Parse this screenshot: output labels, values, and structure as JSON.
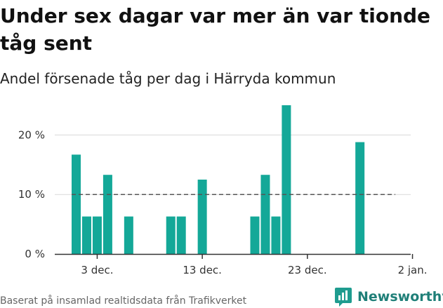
{
  "title": "Under sex dagar var mer än var tionde tåg sent",
  "subtitle": "Andel försenade tåg per dag i Härryda kommun",
  "footer": "Baserat på insamlad realtidsdata från Trafikverket",
  "brand": "Newsworthy",
  "colors": {
    "bar": "#14a898",
    "grid": "#d9d9d9",
    "reference_line": "#555555",
    "brand": "#1f7f78"
  },
  "chart_data": {
    "type": "bar",
    "x": [
      "2023-12-01",
      "2023-12-02",
      "2023-12-03",
      "2023-12-04",
      "2023-12-05",
      "2023-12-06",
      "2023-12-07",
      "2023-12-08",
      "2023-12-09",
      "2023-12-10",
      "2023-12-11",
      "2023-12-12",
      "2023-12-13",
      "2023-12-14",
      "2023-12-15",
      "2023-12-16",
      "2023-12-17",
      "2023-12-18",
      "2023-12-19",
      "2023-12-20",
      "2023-12-21",
      "2023-12-22",
      "2023-12-23",
      "2023-12-24",
      "2023-12-25",
      "2023-12-26",
      "2023-12-27",
      "2023-12-28",
      "2023-12-29",
      "2023-12-30",
      "2023-12-31",
      "2024-01-01",
      "2024-01-02"
    ],
    "values": [
      16.7,
      6.3,
      6.3,
      13.3,
      0,
      6.3,
      0,
      0,
      0,
      6.3,
      6.3,
      0,
      12.5,
      0,
      0,
      0,
      0,
      6.3,
      13.3,
      6.3,
      25.0,
      0,
      0,
      0,
      0,
      0,
      0,
      18.8,
      0,
      0,
      0,
      0,
      0
    ],
    "reference_line": 10,
    "ylim": [
      0,
      25
    ],
    "y_ticks": [
      0,
      10,
      20
    ],
    "y_tick_labels": [
      "0 %",
      "10 %",
      "20 %"
    ],
    "x_ticks": [
      "2023-12-03",
      "2023-12-13",
      "2023-12-23",
      "2024-01-02"
    ],
    "x_tick_labels": [
      "3 dec.",
      "13 dec.",
      "23 dec.",
      "2 jan."
    ],
    "xlabel": "",
    "ylabel": "",
    "grid": true,
    "legend": false
  }
}
